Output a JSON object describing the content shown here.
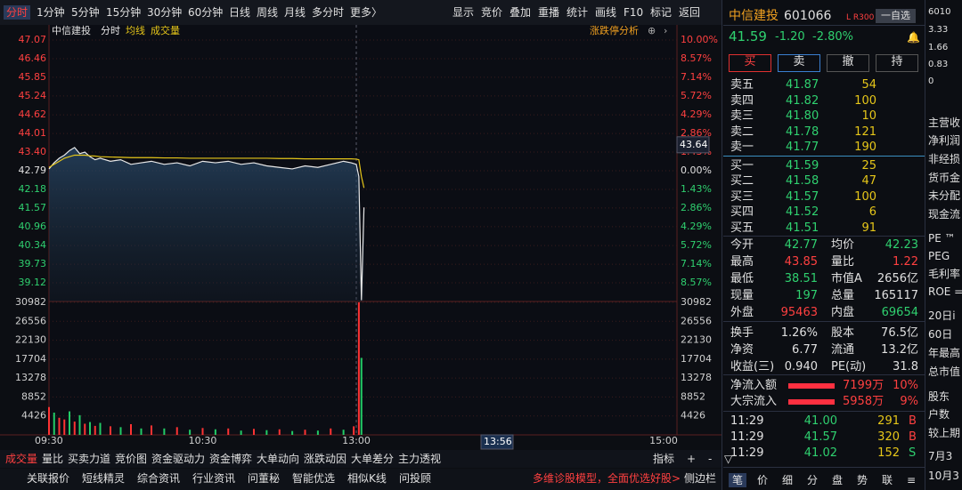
{
  "toolbar": {
    "left": [
      "分时",
      "1分钟",
      "5分钟",
      "15分钟",
      "30分钟",
      "60分钟",
      "日线",
      "周线",
      "月线",
      "多分时",
      "更多〉"
    ],
    "right": [
      "显示",
      "竞价",
      "叠加",
      "重播",
      "统计",
      "画线",
      "F10",
      "标记",
      "返回"
    ]
  },
  "chart_data": [
    {
      "type": "line",
      "title": "中信建投",
      "annotation": "涨跌停分析",
      "cursor_value": 43.64,
      "cursor_time": "13:56",
      "x": [
        0,
        2,
        4,
        6,
        8,
        10,
        12,
        14,
        16,
        18,
        20,
        24,
        28,
        32,
        36,
        40,
        45,
        50,
        55,
        60,
        65,
        70,
        75,
        80,
        85,
        90,
        95,
        100,
        105,
        110,
        115,
        118,
        120,
        121,
        122,
        123
      ],
      "series": [
        {
          "name": "分时",
          "color": "#e8e8e8",
          "values": [
            42.85,
            43.05,
            43.2,
            43.3,
            43.45,
            43.55,
            43.35,
            43.4,
            43.25,
            43.15,
            43.2,
            43.1,
            43.15,
            43.0,
            43.05,
            43.1,
            43.0,
            43.05,
            42.95,
            43.1,
            43.05,
            43.1,
            43.0,
            43.05,
            42.95,
            42.9,
            42.85,
            42.95,
            42.9,
            43.0,
            43.1,
            43.05,
            43.0,
            42.6,
            38.55,
            41.59
          ]
        },
        {
          "name": "均线",
          "color": "#e6c619",
          "values": [
            42.9,
            43.0,
            43.1,
            43.2,
            43.25,
            43.3,
            43.3,
            43.3,
            43.28,
            43.27,
            43.25,
            43.24,
            43.23,
            43.22,
            43.22,
            43.22,
            43.21,
            43.21,
            43.2,
            43.2,
            43.2,
            43.2,
            43.2,
            43.2,
            43.2,
            43.19,
            43.19,
            43.18,
            43.18,
            43.18,
            43.18,
            43.18,
            43.17,
            43.15,
            42.6,
            42.23
          ]
        }
      ],
      "xlim": [
        0,
        240
      ],
      "xticks": [
        {
          "value": 0,
          "label": "09:30"
        },
        {
          "value": 60,
          "label": "10:30"
        },
        {
          "value": 120,
          "label": "13:00"
        },
        {
          "value": 240,
          "label": "15:00"
        }
      ],
      "ylim": [
        38.51,
        47.07
      ],
      "yticks": [
        47.07,
        46.46,
        45.85,
        45.24,
        44.62,
        44.01,
        {
          "value": 43.4,
          "label": "43.40"
        },
        42.79,
        42.18,
        41.57,
        40.96,
        40.34,
        39.73,
        39.12
      ],
      "y2lim": [
        -10,
        10
      ],
      "y2ticks": [
        {
          "value": 10,
          "label": "10.00%"
        },
        {
          "value": 8.57,
          "label": "8.57%"
        },
        {
          "value": 7.14,
          "label": "7.14%"
        },
        {
          "value": 5.72,
          "label": "5.72%"
        },
        {
          "value": 4.29,
          "label": "4.29%"
        },
        {
          "value": 2.86,
          "label": "2.86%"
        },
        {
          "value": 1.43,
          "label": "1.43%"
        },
        {
          "value": 0,
          "label": "0.00%"
        },
        {
          "value": -1.43,
          "label": "1.43%"
        },
        {
          "value": -2.86,
          "label": "2.86%"
        },
        {
          "value": -4.29,
          "label": "4.29%"
        },
        {
          "value": -5.72,
          "label": "5.72%"
        },
        {
          "value": -7.14,
          "label": "7.14%"
        },
        {
          "value": -8.57,
          "label": "8.57%"
        }
      ],
      "grid": true
    },
    {
      "type": "bar",
      "title": "成交量",
      "x": [
        0,
        2,
        4,
        6,
        8,
        10,
        12,
        14,
        16,
        18,
        20,
        24,
        28,
        32,
        36,
        40,
        45,
        50,
        55,
        60,
        65,
        70,
        75,
        80,
        85,
        90,
        95,
        100,
        105,
        110,
        115,
        119,
        121,
        122
      ],
      "values": [
        6500,
        5200,
        4000,
        3600,
        5500,
        3100,
        4600,
        2600,
        3000,
        2100,
        2800,
        2000,
        1800,
        2500,
        1500,
        2200,
        1500,
        1800,
        1200,
        1600,
        1300,
        1500,
        1000,
        1400,
        1100,
        1300,
        900,
        1200,
        1000,
        1500,
        1200,
        2000,
        30982,
        18000
      ],
      "colors": [
        "#f33",
        "#2c6",
        "#f33",
        "#f33",
        "#2c6",
        "#f33",
        "#2c6",
        "#f33",
        "#2c6",
        "#f33",
        "#2c6",
        "#f33",
        "#2c6",
        "#f33",
        "#2c6",
        "#f33",
        "#2c6",
        "#f33",
        "#2c6",
        "#f33",
        "#2c6",
        "#f33",
        "#2c6",
        "#f33",
        "#2c6",
        "#f33",
        "#2c6",
        "#f33",
        "#2c6",
        "#f33",
        "#2c6",
        "#f33",
        "#f33",
        "#2c6"
      ],
      "xlim": [
        0,
        240
      ],
      "ylim": [
        0,
        30982
      ],
      "yticks": [
        30982,
        26556,
        22130,
        17704,
        13278,
        8852,
        4426
      ]
    }
  ],
  "quote": {
    "name": "中信建投",
    "code": "601066",
    "tags": "L R300",
    "watch": "一自选",
    "price": "41.59",
    "change": "-1.20",
    "pct": "-2.80%",
    "buttons": [
      "买",
      "卖",
      "撤",
      "持"
    ]
  },
  "order_book": [
    [
      "卖五",
      "41.87",
      "54"
    ],
    [
      "卖四",
      "41.82",
      "100"
    ],
    [
      "卖三",
      "41.80",
      "10"
    ],
    [
      "卖二",
      "41.78",
      "121"
    ],
    [
      "卖一",
      "41.77",
      "190"
    ],
    [
      "买一",
      "41.59",
      "25"
    ],
    [
      "买二",
      "41.58",
      "47"
    ],
    [
      "买三",
      "41.57",
      "100"
    ],
    [
      "买四",
      "41.52",
      "6"
    ],
    [
      "买五",
      "41.51",
      "91"
    ]
  ],
  "stats": [
    [
      "今开",
      "42.77",
      "均价",
      "42.23"
    ],
    [
      "最高",
      "43.85",
      "量比",
      "1.22"
    ],
    [
      "最低",
      "38.51",
      "市值A",
      "2656亿"
    ],
    [
      "现量",
      "197",
      "总量",
      "165117"
    ],
    [
      "外盘",
      "95463",
      "内盘",
      "69654"
    ],
    [
      "换手",
      "1.26%",
      "股本",
      "76.5亿"
    ],
    [
      "净资",
      "6.77",
      "流通",
      "13.2亿"
    ],
    [
      "收益(三)",
      "0.940",
      "PE(动)",
      "31.8"
    ]
  ],
  "flow": [
    [
      "净流入额",
      "7199万",
      "10%"
    ],
    [
      "大宗流入",
      "5958万",
      "9%"
    ]
  ],
  "ticks": [
    [
      "11:29",
      "41.00",
      "291",
      "B"
    ],
    [
      "11:29",
      "41.57",
      "320",
      "B"
    ],
    [
      "11:29",
      "41.02",
      "152",
      "S"
    ]
  ],
  "side_tabs": [
    "笔",
    "价",
    "细",
    "分",
    "盘",
    "势",
    "联",
    "≡"
  ],
  "far_right": [
    "6010",
    "3.33",
    "1.66",
    "0.83",
    "0",
    "主营收",
    "净利润",
    "非经损",
    "货币金",
    "未分配",
    "现金流",
    "PE ™",
    "PEG",
    "毛利率",
    "ROE =",
    "20日i",
    "60日",
    "年最高",
    "总市值",
    "股东",
    "户数",
    "较上期",
    "7月3",
    "10月3"
  ],
  "bottom_tabs": [
    "成交量",
    "量比",
    "买卖力道",
    "竞价图",
    "资金驱动力",
    "资金博弈",
    "大单动向",
    "涨跌动因",
    "大单差分",
    "主力透视"
  ],
  "bottom_tools": [
    "指标",
    "+",
    "-",
    "▽"
  ],
  "bottom_links": [
    "关联报价",
    "短线精灵",
    "综合资讯",
    "行业资讯",
    "问董秘",
    "智能优选",
    "相似K线",
    "问投顾"
  ],
  "promo": "多维诊股模型，全面优选好股>",
  "sidebar": "侧边栏"
}
